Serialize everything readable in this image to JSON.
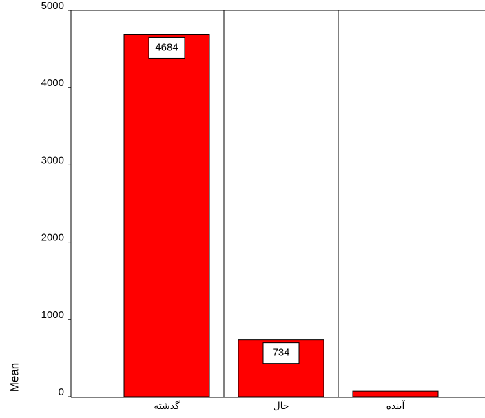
{
  "chart_data": {
    "type": "bar",
    "y_label": "Mean",
    "categories": [
      "گذشته",
      "حال",
      "آینده"
    ],
    "values": [
      4684,
      734,
      70
    ],
    "value_labels": [
      "4684",
      "734",
      null
    ],
    "color": "#ff0000",
    "ylim": [
      0,
      5000
    ],
    "yticks": [
      0,
      1000,
      2000,
      3000,
      4000,
      5000
    ]
  }
}
